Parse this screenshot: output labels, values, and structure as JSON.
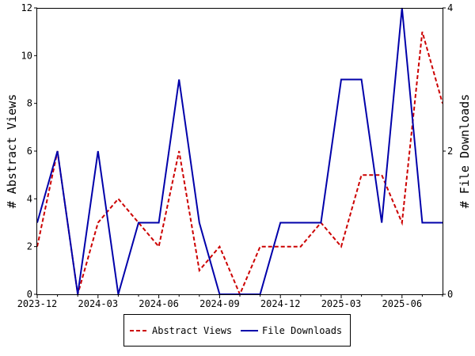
{
  "chart_data": {
    "type": "line",
    "x": [
      "2023-12",
      "2024-01",
      "2024-02",
      "2024-03",
      "2024-04",
      "2024-05",
      "2024-06",
      "2024-07",
      "2024-08",
      "2024-09",
      "2024-10",
      "2024-11",
      "2024-12",
      "2025-01",
      "2025-02",
      "2025-03",
      "2025-04",
      "2025-05",
      "2025-06",
      "2025-07",
      "2025-08"
    ],
    "x_tick_labels": [
      "2023-12",
      "2024-03",
      "2024-06",
      "2024-09",
      "2024-12",
      "2025-03",
      "2025-06"
    ],
    "y_left_label": "# Abstract Views",
    "y_right_label": "# File Downloads",
    "y_left_ticks": [
      "0",
      "2",
      "4",
      "6",
      "8",
      "10",
      "12"
    ],
    "y_right_ticks": [
      "0",
      "2",
      "4"
    ],
    "y_left_lim": [
      0,
      12
    ],
    "y_right_lim": [
      0,
      4
    ],
    "grid": false,
    "legend_position": "bottom",
    "series": [
      {
        "name": "Abstract Views",
        "axis": "left",
        "color": "#cc0000",
        "style": "dashed",
        "values": [
          2,
          6,
          0,
          3,
          4,
          3,
          2,
          6,
          1,
          2,
          0,
          2,
          2,
          2,
          3,
          2,
          5,
          5,
          3,
          11,
          8
        ]
      },
      {
        "name": "File Downloads",
        "axis": "right",
        "color": "#0000aa",
        "style": "solid",
        "values": [
          1,
          2,
          0,
          2,
          0,
          1,
          1,
          3,
          1,
          0,
          0,
          0,
          1,
          1,
          1,
          3,
          3,
          1,
          4,
          1,
          1
        ]
      }
    ]
  }
}
